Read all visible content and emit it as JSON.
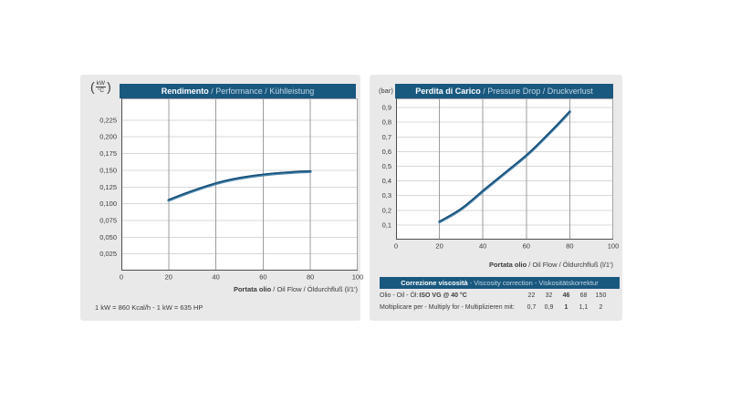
{
  "colors": {
    "header_blue": "#19587f",
    "panel_bg": "#e9e9e9",
    "plot_bg": "#ffffff",
    "grid_h": "#d8d8d8",
    "grid_v": "#9d9d9d",
    "plot_border": "#a5a5a5",
    "axis_dark": "#4e4e4e",
    "tick_text": "#3b3b3b",
    "curve_dark": "#16507b",
    "curve_light": "#5189ae",
    "title_secondary": "#c5d7e4"
  },
  "xaxis": {
    "bold": "Portata olio",
    "rest": " / Oil Flow / Öldurchfluß",
    "unit": " (l/1')"
  },
  "footnote": "1 kW = 860 Kcal/h  -  1 kW = 635 HP",
  "chart_data": [
    {
      "type": "line",
      "title_bold": "Rendimento",
      "title_rest": " / Performance / Kühlleistung",
      "y_unit": {
        "open": "(",
        "numerator": "kW",
        "denominator": "°C",
        "close": ")"
      },
      "xlabel": "Portata olio / Oil Flow / Öldurchfluß (l/1')",
      "xlim": [
        0,
        100
      ],
      "ylim": [
        0,
        0.2575
      ],
      "xticks": [
        0,
        20,
        40,
        60,
        80,
        100
      ],
      "xtick_labels": [
        "0",
        "20",
        "40",
        "60",
        "80",
        "100"
      ],
      "xgrid": [
        20,
        40,
        60,
        80
      ],
      "ytick_values": [
        0.025,
        0.05,
        0.075,
        0.1,
        0.125,
        0.15,
        0.175,
        0.2,
        0.225
      ],
      "ytick_labels": [
        "0,025",
        "0,050",
        "0,075",
        "0,100",
        "0,125",
        "0,150",
        "0,175",
        "0,200",
        "0,225"
      ],
      "grid": true,
      "legend": "none",
      "series": [
        {
          "name": "cooling-capacity",
          "x": [
            20,
            25,
            30,
            35,
            40,
            45,
            50,
            55,
            60,
            65,
            70,
            75,
            80
          ],
          "y": [
            0.105,
            0.112,
            0.1185,
            0.1245,
            0.13,
            0.1345,
            0.138,
            0.1407,
            0.143,
            0.1448,
            0.146,
            0.1473,
            0.148
          ]
        }
      ]
    },
    {
      "type": "line",
      "title_bold": "Perdita di Carico",
      "title_rest": " / Pressure Drop / Druckverlust",
      "y_unit": "(bar)",
      "xlabel": "Portata olio / Oil Flow / Öldurchfluß (l/1')",
      "xlim": [
        0,
        100
      ],
      "ylim": [
        0,
        0.9625
      ],
      "xticks": [
        0,
        20,
        40,
        60,
        80,
        100
      ],
      "xtick_labels": [
        "0",
        "20",
        "40",
        "60",
        "80",
        "100"
      ],
      "xgrid": [
        20,
        40,
        60,
        80
      ],
      "ytick_values": [
        0.1,
        0.2,
        0.3,
        0.4,
        0.5,
        0.6,
        0.7,
        0.8,
        0.9
      ],
      "ytick_labels": [
        "0,1",
        "0,2",
        "0,3",
        "0,4",
        "0,5",
        "0,6",
        "0,7",
        "0,8",
        "0,9"
      ],
      "grid": true,
      "legend": "none",
      "series": [
        {
          "name": "pressure-drop",
          "x": [
            20,
            25,
            30,
            35,
            40,
            45,
            50,
            55,
            60,
            65,
            70,
            75,
            80
          ],
          "y": [
            0.12,
            0.16,
            0.205,
            0.265,
            0.33,
            0.39,
            0.45,
            0.51,
            0.57,
            0.64,
            0.715,
            0.79,
            0.87
          ]
        }
      ]
    }
  ],
  "viscosity": {
    "title_bold": "Correzione viscosità",
    "title_rest": "  -  Viscosity correction  -  Viskositätskorrektur",
    "oil_label_prefix": "Olio - Oil - Öl:",
    "oil_label_bold": "ISO VG @ 40 °C",
    "vg_values": [
      "22",
      "32",
      "46",
      "68",
      "150"
    ],
    "vg_bold_value": "46",
    "multiply_label": "Moltiplicare per - Multiply for - Multiplizieren mit:",
    "multiply_values": [
      "0,7",
      "0,9",
      "1",
      "1,1",
      "2"
    ],
    "multiply_bold_value": "1"
  }
}
